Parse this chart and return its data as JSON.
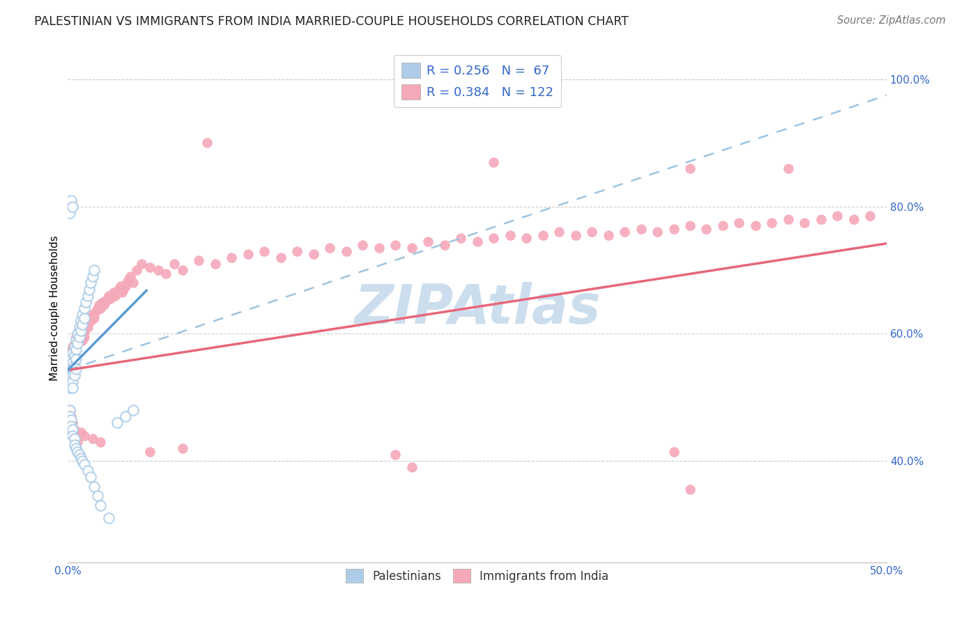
{
  "title": "PALESTINIAN VS IMMIGRANTS FROM INDIA MARRIED-COUPLE HOUSEHOLDS CORRELATION CHART",
  "source": "Source: ZipAtlas.com",
  "ylabel": "Married-couple Households",
  "xlim": [
    0.0,
    0.5
  ],
  "ylim": [
    0.24,
    1.04
  ],
  "xtick_positions": [
    0.0,
    0.05,
    0.1,
    0.15,
    0.2,
    0.25,
    0.3,
    0.35,
    0.4,
    0.45,
    0.5
  ],
  "xtick_labels": [
    "0.0%",
    "",
    "",
    "",
    "",
    "",
    "",
    "",
    "",
    "",
    "50.0%"
  ],
  "ytick_positions": [
    0.4,
    0.6,
    0.8,
    1.0
  ],
  "ytick_labels": [
    "40.0%",
    "60.0%",
    "80.0%",
    "100.0%"
  ],
  "R_blue": 0.256,
  "N_blue": 67,
  "R_pink": 0.384,
  "N_pink": 122,
  "color_blue": "#aecce8",
  "color_pink": "#f5a8b8",
  "line_color_blue": "#5b9bd5",
  "line_color_pink": "#e8667a",
  "line_color_dashed": "#9dc3e0",
  "legend_label_blue": "Palestinians",
  "legend_label_pink": "Immigrants from India",
  "watermark": "ZIPAtlas",
  "watermark_color": "#ccdeed",
  "blue_line_x": [
    0.0,
    0.048
  ],
  "blue_line_y": [
    0.543,
    0.668
  ],
  "pink_line_x": [
    0.0,
    0.5
  ],
  "pink_line_y": [
    0.543,
    0.742
  ],
  "dashed_line_x": [
    0.0,
    0.5
  ],
  "dashed_line_y": [
    0.543,
    0.975
  ],
  "blue_pts": [
    [
      0.001,
      0.545
    ],
    [
      0.001,
      0.535
    ],
    [
      0.001,
      0.525
    ],
    [
      0.001,
      0.515
    ],
    [
      0.002,
      0.555
    ],
    [
      0.002,
      0.54
    ],
    [
      0.002,
      0.53
    ],
    [
      0.002,
      0.52
    ],
    [
      0.002,
      0.545
    ],
    [
      0.002,
      0.56
    ],
    [
      0.003,
      0.57
    ],
    [
      0.003,
      0.555
    ],
    [
      0.003,
      0.545
    ],
    [
      0.003,
      0.535
    ],
    [
      0.003,
      0.525
    ],
    [
      0.003,
      0.515
    ],
    [
      0.004,
      0.58
    ],
    [
      0.004,
      0.565
    ],
    [
      0.004,
      0.55
    ],
    [
      0.004,
      0.535
    ],
    [
      0.005,
      0.59
    ],
    [
      0.005,
      0.575
    ],
    [
      0.005,
      0.56
    ],
    [
      0.005,
      0.545
    ],
    [
      0.006,
      0.6
    ],
    [
      0.006,
      0.585
    ],
    [
      0.007,
      0.61
    ],
    [
      0.007,
      0.595
    ],
    [
      0.008,
      0.62
    ],
    [
      0.008,
      0.605
    ],
    [
      0.009,
      0.63
    ],
    [
      0.009,
      0.615
    ],
    [
      0.01,
      0.64
    ],
    [
      0.01,
      0.625
    ],
    [
      0.011,
      0.65
    ],
    [
      0.012,
      0.66
    ],
    [
      0.013,
      0.67
    ],
    [
      0.014,
      0.68
    ],
    [
      0.015,
      0.69
    ],
    [
      0.016,
      0.7
    ],
    [
      0.001,
      0.8
    ],
    [
      0.001,
      0.79
    ],
    [
      0.002,
      0.81
    ],
    [
      0.003,
      0.8
    ],
    [
      0.001,
      0.48
    ],
    [
      0.001,
      0.47
    ],
    [
      0.002,
      0.465
    ],
    [
      0.002,
      0.455
    ],
    [
      0.003,
      0.45
    ],
    [
      0.003,
      0.44
    ],
    [
      0.004,
      0.435
    ],
    [
      0.004,
      0.425
    ],
    [
      0.005,
      0.42
    ],
    [
      0.006,
      0.415
    ],
    [
      0.007,
      0.41
    ],
    [
      0.008,
      0.405
    ],
    [
      0.009,
      0.4
    ],
    [
      0.01,
      0.395
    ],
    [
      0.012,
      0.385
    ],
    [
      0.014,
      0.375
    ],
    [
      0.016,
      0.36
    ],
    [
      0.018,
      0.345
    ],
    [
      0.02,
      0.33
    ],
    [
      0.025,
      0.31
    ],
    [
      0.03,
      0.46
    ],
    [
      0.035,
      0.47
    ],
    [
      0.04,
      0.48
    ]
  ],
  "pink_pts": [
    [
      0.001,
      0.545
    ],
    [
      0.001,
      0.535
    ],
    [
      0.001,
      0.56
    ],
    [
      0.001,
      0.55
    ],
    [
      0.002,
      0.565
    ],
    [
      0.002,
      0.555
    ],
    [
      0.002,
      0.57
    ],
    [
      0.002,
      0.56
    ],
    [
      0.003,
      0.575
    ],
    [
      0.003,
      0.565
    ],
    [
      0.003,
      0.58
    ],
    [
      0.004,
      0.585
    ],
    [
      0.004,
      0.575
    ],
    [
      0.005,
      0.595
    ],
    [
      0.005,
      0.585
    ],
    [
      0.006,
      0.6
    ],
    [
      0.006,
      0.59
    ],
    [
      0.007,
      0.61
    ],
    [
      0.008,
      0.6
    ],
    [
      0.009,
      0.59
    ],
    [
      0.01,
      0.605
    ],
    [
      0.01,
      0.595
    ],
    [
      0.011,
      0.615
    ],
    [
      0.012,
      0.61
    ],
    [
      0.013,
      0.625
    ],
    [
      0.014,
      0.62
    ],
    [
      0.015,
      0.63
    ],
    [
      0.016,
      0.625
    ],
    [
      0.017,
      0.635
    ],
    [
      0.018,
      0.64
    ],
    [
      0.019,
      0.645
    ],
    [
      0.02,
      0.64
    ],
    [
      0.021,
      0.65
    ],
    [
      0.022,
      0.645
    ],
    [
      0.023,
      0.65
    ],
    [
      0.024,
      0.655
    ],
    [
      0.025,
      0.66
    ],
    [
      0.026,
      0.655
    ],
    [
      0.027,
      0.66
    ],
    [
      0.028,
      0.665
    ],
    [
      0.029,
      0.66
    ],
    [
      0.03,
      0.665
    ],
    [
      0.031,
      0.67
    ],
    [
      0.032,
      0.675
    ],
    [
      0.033,
      0.665
    ],
    [
      0.034,
      0.67
    ],
    [
      0.035,
      0.675
    ],
    [
      0.036,
      0.68
    ],
    [
      0.037,
      0.685
    ],
    [
      0.038,
      0.69
    ],
    [
      0.04,
      0.68
    ],
    [
      0.042,
      0.7
    ],
    [
      0.045,
      0.71
    ],
    [
      0.05,
      0.705
    ],
    [
      0.055,
      0.7
    ],
    [
      0.06,
      0.695
    ],
    [
      0.065,
      0.71
    ],
    [
      0.07,
      0.7
    ],
    [
      0.08,
      0.715
    ],
    [
      0.09,
      0.71
    ],
    [
      0.1,
      0.72
    ],
    [
      0.11,
      0.725
    ],
    [
      0.12,
      0.73
    ],
    [
      0.13,
      0.72
    ],
    [
      0.14,
      0.73
    ],
    [
      0.15,
      0.725
    ],
    [
      0.16,
      0.735
    ],
    [
      0.17,
      0.73
    ],
    [
      0.18,
      0.74
    ],
    [
      0.19,
      0.735
    ],
    [
      0.2,
      0.74
    ],
    [
      0.21,
      0.735
    ],
    [
      0.22,
      0.745
    ],
    [
      0.23,
      0.74
    ],
    [
      0.24,
      0.75
    ],
    [
      0.25,
      0.745
    ],
    [
      0.26,
      0.75
    ],
    [
      0.27,
      0.755
    ],
    [
      0.28,
      0.75
    ],
    [
      0.29,
      0.755
    ],
    [
      0.3,
      0.76
    ],
    [
      0.31,
      0.755
    ],
    [
      0.32,
      0.76
    ],
    [
      0.33,
      0.755
    ],
    [
      0.34,
      0.76
    ],
    [
      0.35,
      0.765
    ],
    [
      0.36,
      0.76
    ],
    [
      0.37,
      0.765
    ],
    [
      0.38,
      0.77
    ],
    [
      0.39,
      0.765
    ],
    [
      0.4,
      0.77
    ],
    [
      0.41,
      0.775
    ],
    [
      0.42,
      0.77
    ],
    [
      0.43,
      0.775
    ],
    [
      0.44,
      0.78
    ],
    [
      0.45,
      0.775
    ],
    [
      0.46,
      0.78
    ],
    [
      0.47,
      0.785
    ],
    [
      0.48,
      0.78
    ],
    [
      0.49,
      0.785
    ],
    [
      0.085,
      0.9
    ],
    [
      0.26,
      0.87
    ],
    [
      0.38,
      0.86
    ],
    [
      0.44,
      0.86
    ],
    [
      0.001,
      0.48
    ],
    [
      0.002,
      0.47
    ],
    [
      0.003,
      0.46
    ],
    [
      0.004,
      0.45
    ],
    [
      0.005,
      0.44
    ],
    [
      0.006,
      0.43
    ],
    [
      0.008,
      0.445
    ],
    [
      0.01,
      0.44
    ],
    [
      0.015,
      0.435
    ],
    [
      0.02,
      0.43
    ],
    [
      0.05,
      0.415
    ],
    [
      0.07,
      0.42
    ],
    [
      0.2,
      0.41
    ],
    [
      0.38,
      0.355
    ],
    [
      0.37,
      0.415
    ],
    [
      0.21,
      0.39
    ]
  ]
}
